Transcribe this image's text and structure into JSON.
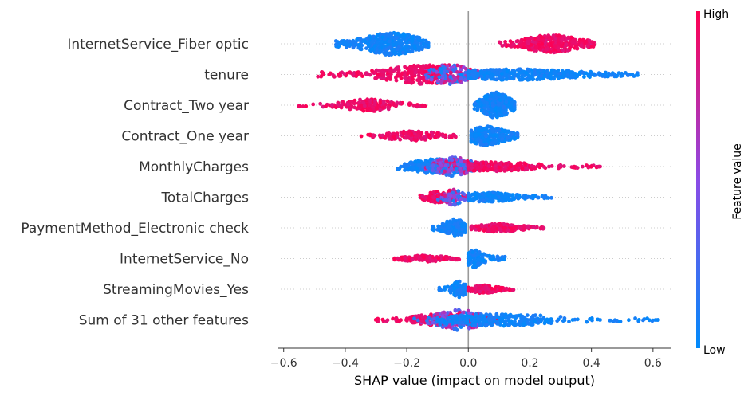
{
  "chart_data": {
    "type": "scatter",
    "subtype": "beeswarm",
    "xlabel": "SHAP value (impact on model output)",
    "xlim": [
      -0.62,
      0.66
    ],
    "xticks": [
      -0.6,
      -0.4,
      -0.2,
      0.0,
      0.2,
      0.4,
      0.6
    ],
    "xtick_labels": [
      "−0.6",
      "−0.4",
      "−0.2",
      "0.0",
      "0.2",
      "0.4",
      "0.6"
    ],
    "colorbar": {
      "label": "Feature value",
      "high": "High",
      "low": "Low",
      "high_color": "#ff0052",
      "low_color": "#008bfb"
    },
    "features": [
      {
        "name": "InternetService_Fiber optic",
        "clusters": [
          {
            "color": "low",
            "min": -0.43,
            "max": -0.13,
            "center": -0.25,
            "spread": 0.06,
            "height": 14,
            "n": 420
          },
          {
            "color": "high",
            "min": 0.1,
            "max": 0.42,
            "center": 0.27,
            "spread": 0.06,
            "height": 11,
            "n": 360
          }
        ]
      },
      {
        "name": "tenure",
        "clusters": [
          {
            "color": "high",
            "min": -0.49,
            "max": -0.08,
            "center": -0.14,
            "spread": 0.09,
            "height": 12,
            "n": 330
          },
          {
            "color": "mid",
            "min": -0.14,
            "max": 0.05,
            "center": -0.06,
            "spread": 0.04,
            "height": 13,
            "n": 180
          },
          {
            "color": "low",
            "min": 0.0,
            "max": 0.55,
            "center": 0.15,
            "spread": 0.14,
            "height": 7,
            "n": 420
          }
        ]
      },
      {
        "name": "Contract_Two year",
        "clusters": [
          {
            "color": "high",
            "min": -0.56,
            "max": -0.13,
            "center": -0.32,
            "spread": 0.05,
            "height": 8,
            "n": 170
          },
          {
            "color": "low",
            "min": 0.02,
            "max": 0.15,
            "center": 0.09,
            "spread": 0.03,
            "height": 16,
            "n": 330
          }
        ]
      },
      {
        "name": "Contract_One year",
        "clusters": [
          {
            "color": "high",
            "min": -0.36,
            "max": -0.04,
            "center": -0.18,
            "spread": 0.06,
            "height": 6,
            "n": 150
          },
          {
            "color": "low",
            "min": 0.01,
            "max": 0.16,
            "center": 0.06,
            "spread": 0.04,
            "height": 12,
            "n": 290
          }
        ]
      },
      {
        "name": "MonthlyCharges",
        "clusters": [
          {
            "color": "low",
            "min": -0.23,
            "max": 0.05,
            "center": -0.1,
            "spread": 0.06,
            "height": 10,
            "n": 260
          },
          {
            "color": "mid",
            "min": -0.16,
            "max": 0.06,
            "center": -0.05,
            "spread": 0.04,
            "height": 12,
            "n": 200
          },
          {
            "color": "high",
            "min": 0.0,
            "max": 0.43,
            "center": 0.08,
            "spread": 0.09,
            "height": 6,
            "n": 260
          }
        ]
      },
      {
        "name": "TotalCharges",
        "clusters": [
          {
            "color": "high",
            "min": -0.16,
            "max": -0.04,
            "center": -0.1,
            "spread": 0.025,
            "height": 7,
            "n": 110
          },
          {
            "color": "mid",
            "min": -0.1,
            "max": 0.0,
            "center": -0.05,
            "spread": 0.02,
            "height": 10,
            "n": 100
          },
          {
            "color": "low",
            "min": 0.0,
            "max": 0.27,
            "center": 0.06,
            "spread": 0.06,
            "height": 6,
            "n": 220
          }
        ]
      },
      {
        "name": "PaymentMethod_Electronic check",
        "clusters": [
          {
            "color": "low",
            "min": -0.12,
            "max": -0.01,
            "center": -0.045,
            "spread": 0.02,
            "height": 12,
            "n": 180
          },
          {
            "color": "high",
            "min": 0.01,
            "max": 0.25,
            "center": 0.1,
            "spread": 0.05,
            "height": 5,
            "n": 230
          }
        ]
      },
      {
        "name": "InternetService_No",
        "clusters": [
          {
            "color": "high",
            "min": -0.24,
            "max": -0.03,
            "center": -0.14,
            "spread": 0.05,
            "height": 4,
            "n": 130
          },
          {
            "color": "low",
            "min": 0.0,
            "max": 0.12,
            "center": 0.02,
            "spread": 0.02,
            "height": 11,
            "n": 120
          }
        ]
      },
      {
        "name": "StreamingMovies_Yes",
        "clusters": [
          {
            "color": "low",
            "min": -0.11,
            "max": -0.01,
            "center": -0.03,
            "spread": 0.015,
            "height": 10,
            "n": 90
          },
          {
            "color": "high",
            "min": 0.0,
            "max": 0.15,
            "center": 0.05,
            "spread": 0.03,
            "height": 5,
            "n": 140
          }
        ]
      },
      {
        "name": "Sum of 31 other features",
        "clusters": [
          {
            "color": "high",
            "min": -0.33,
            "max": 0.1,
            "center": -0.08,
            "spread": 0.07,
            "height": 8,
            "n": 220
          },
          {
            "color": "mid",
            "min": -0.18,
            "max": 0.1,
            "center": -0.03,
            "spread": 0.05,
            "height": 13,
            "n": 180
          },
          {
            "color": "low",
            "min": -0.1,
            "max": 0.62,
            "center": 0.1,
            "spread": 0.12,
            "height": 8,
            "n": 300
          }
        ]
      }
    ]
  }
}
